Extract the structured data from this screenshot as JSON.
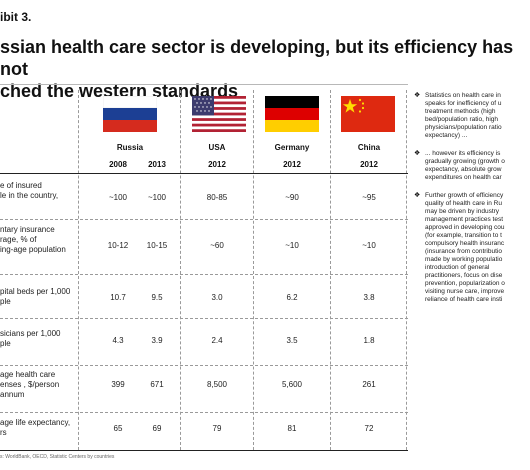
{
  "exhibit": "ibit 3.",
  "title_line1": "ssian health care sector is developing, but its efficiency has not",
  "title_line2": "ched the western standards",
  "columns": {
    "russia": {
      "country": "Russia",
      "year1": "2008",
      "year2": "2013"
    },
    "usa": {
      "country": "USA",
      "year": "2012"
    },
    "germany": {
      "country": "Germany",
      "year": "2012"
    },
    "china": {
      "country": "China",
      "year": "2012"
    }
  },
  "rows": [
    {
      "label": "e of insured\nle in the country,",
      "values": [
        "~100",
        "~100",
        "80-85",
        "~90",
        "~95"
      ]
    },
    {
      "label": "ntary insurance\nrage, % of\ning-age population",
      "values": [
        "10-12",
        "10-15",
        "~60",
        "~10",
        "~10"
      ]
    },
    {
      "label": "pital beds per 1,000\nple",
      "values": [
        "10.7",
        "9.5",
        "3.0",
        "6.2",
        "3.8"
      ]
    },
    {
      "label": "sicians per 1,000\nple",
      "values": [
        "4.3",
        "3.9",
        "2.4",
        "3.5",
        "1.8"
      ]
    },
    {
      "label": "age health care\nenses , $/person\nannum",
      "values": [
        "399",
        "671",
        "8,500",
        "5,600",
        "261"
      ]
    },
    {
      "label": "age life   expectancy,\nrs",
      "values": [
        "65",
        "69",
        "79",
        "81",
        "72"
      ]
    }
  ],
  "source": "s: WorldBank, OECD, Statistic Centers by countries",
  "notes": [
    {
      "bullet": "❖",
      "text": "Statistics on health care in\nspeaks for inefficiency of u\ntreatment methods (high\nbed/population ratio, high\nphysicians/population ratio\nexpectancy) ..."
    },
    {
      "bullet": "❖",
      "text": "... however its efficiency is\ngradually growing (growth o\nexpectancy, absolute grow\nexpenditures on health car"
    },
    {
      "bullet": "❖",
      "text": "Further growth of efficiency\nquality of health care in Ru\nmay be driven by industry\nmanagement practices test\napproved in developing cou\n(for example, transition to t\ncompulsory health insuranc\n(insurance from contributio\nmade by working populatio\nintroduction of general\npractitioners, focus on dise\nprevention, popularization o\nvisiting nurse care, improve\nreliance of health care insti"
    }
  ],
  "colors": {
    "russia_white": "#ffffff",
    "russia_blue": "#1c3f94",
    "russia_red": "#d52b1e",
    "usa_red": "#b22234",
    "usa_blue": "#3c3b6e",
    "germany_black": "#000000",
    "germany_red": "#dd0000",
    "germany_gold": "#ffce00",
    "china_red": "#de2910",
    "china_star": "#ffde00"
  }
}
